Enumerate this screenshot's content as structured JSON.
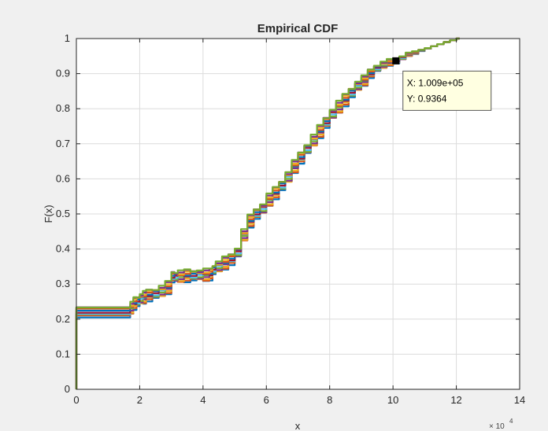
{
  "chart_data": {
    "type": "line",
    "title": "Empirical CDF",
    "xlabel": "x",
    "ylabel": "F(x)",
    "x_exponent_label": "× 10",
    "x_exponent_power": "4",
    "xlim": [
      0,
      140000
    ],
    "ylim": [
      0,
      1
    ],
    "x_tick_labels": [
      "0",
      "2",
      "4",
      "6",
      "8",
      "10",
      "12",
      "14"
    ],
    "y_tick_labels": [
      "0",
      "0.1",
      "0.2",
      "0.3",
      "0.4",
      "0.5",
      "0.6",
      "0.7",
      "0.8",
      "0.9",
      "1"
    ],
    "grid": true,
    "series_count": 12,
    "series_colors": [
      "#0072bd",
      "#d95319",
      "#edb120",
      "#7e2f8e",
      "#77ac30",
      "#4dbeee",
      "#a2142f"
    ],
    "x": [
      0,
      17000,
      17000,
      18000,
      19000,
      20000,
      21000,
      22000,
      24000,
      26000,
      28000,
      30000,
      31000,
      32000,
      34000,
      36000,
      38000,
      40000,
      42000,
      43000,
      44000,
      46000,
      48000,
      50000,
      52000,
      54000,
      56000,
      58000,
      60000,
      62000,
      64000,
      66000,
      68000,
      70000,
      72000,
      74000,
      76000,
      78000,
      80000,
      82000,
      84000,
      86000,
      88000,
      90000,
      92000,
      94000,
      96000,
      98000,
      100000,
      102000,
      104000,
      106000,
      108000,
      110000,
      112000,
      114000,
      116000,
      118000,
      120000,
      121000
    ],
    "series": [
      {
        "values": [
          0.22,
          0.22,
          0.232,
          0.245,
          0.25,
          0.258,
          0.262,
          0.268,
          0.272,
          0.28,
          0.29,
          0.32,
          0.32,
          0.322,
          0.324,
          0.324,
          0.326,
          0.326,
          0.328,
          0.34,
          0.35,
          0.36,
          0.37,
          0.39,
          0.44,
          0.48,
          0.5,
          0.515,
          0.54,
          0.56,
          0.58,
          0.605,
          0.635,
          0.66,
          0.685,
          0.71,
          0.735,
          0.76,
          0.785,
          0.805,
          0.825,
          0.845,
          0.865,
          0.88,
          0.9,
          0.915,
          0.925,
          0.932,
          0.936,
          0.945,
          0.955,
          0.96,
          0.966,
          0.972,
          0.978,
          0.984,
          0.99,
          0.995,
          1.0,
          1.0
        ]
      }
    ],
    "datatip": {
      "x": 100900,
      "y": 0.9364,
      "x_text": "X: 1.009e+05",
      "y_text": "Y: 0.9364"
    }
  }
}
